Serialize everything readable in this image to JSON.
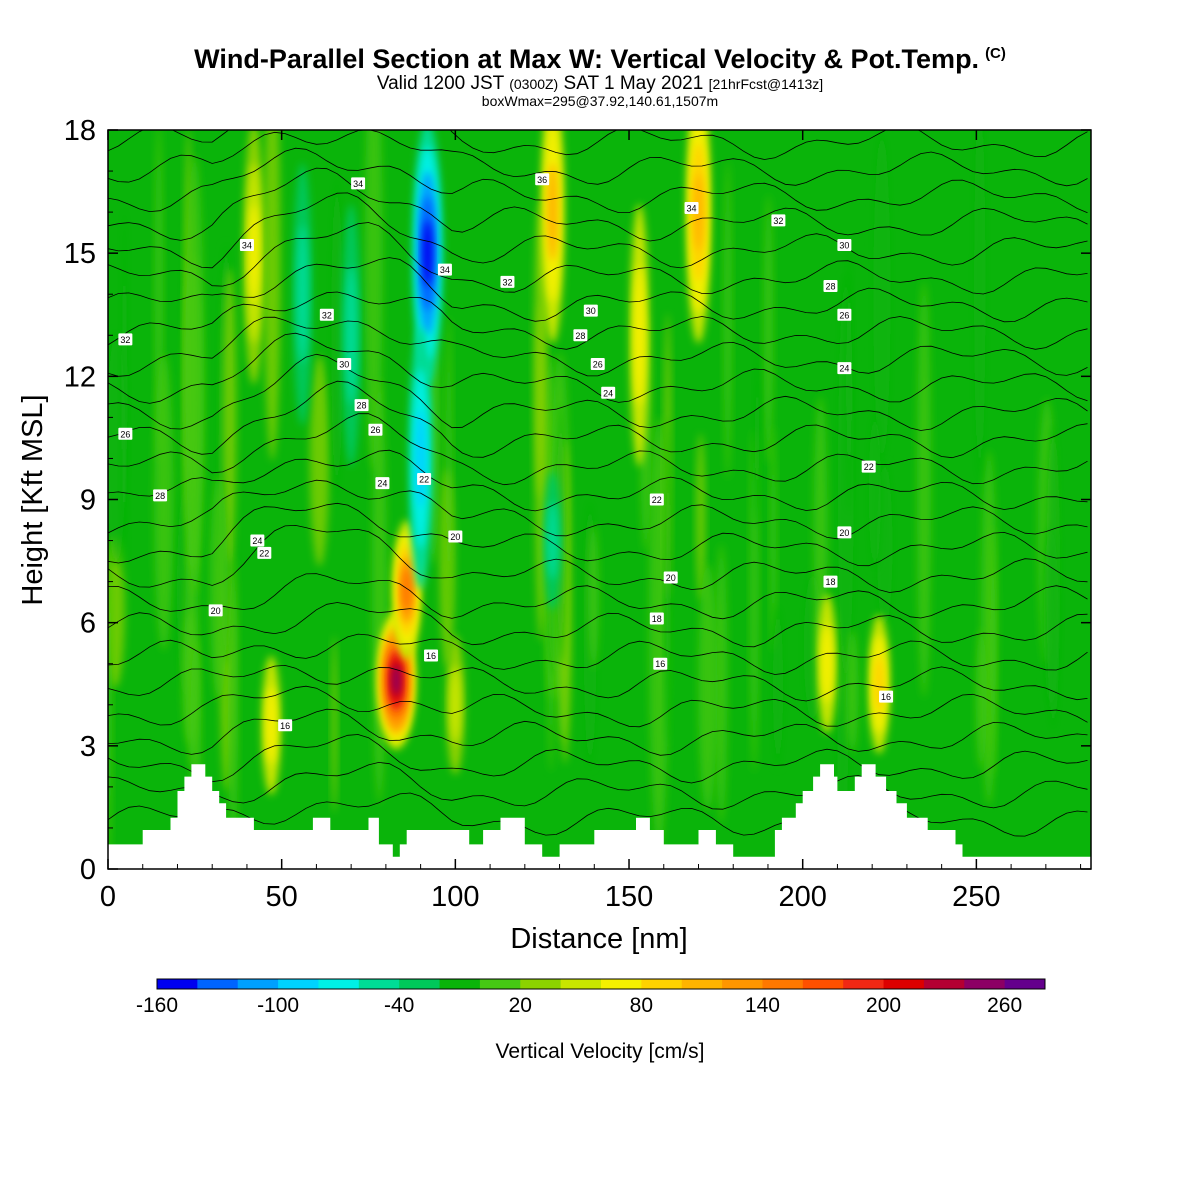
{
  "header": {
    "title": "Wind-Parallel Section at Max W: Vertical Velocity & Pot.Temp.",
    "title_mark": "(C)",
    "valid_prefix": "Valid 1200 JST",
    "valid_utc": "(0300Z)",
    "valid_date": "SAT 1 May 2021",
    "forecast": "[21hrFcst@1413z]",
    "boxwmax": "boxWmax=295@37.92,140.61,1507m"
  },
  "chart_data": {
    "type": "heatmap",
    "xlabel": "Distance [nm]",
    "ylabel": "Height [Kft MSL]",
    "xlim": [
      0,
      283
    ],
    "ylim": [
      0,
      18
    ],
    "x_ticks": [
      0,
      50,
      100,
      150,
      200,
      250
    ],
    "y_ticks": [
      0,
      3,
      6,
      9,
      12,
      15,
      18
    ],
    "colorbar": {
      "label": "Vertical Velocity [cm/s]",
      "tick_labels": [
        "-160",
        "-100",
        "-40",
        "20",
        "80",
        "140",
        "200",
        "260"
      ],
      "tick_values": [
        -160,
        -100,
        -40,
        20,
        80,
        140,
        200,
        260
      ],
      "min": -160,
      "max": 280,
      "step": 20,
      "colors": [
        "#0000f0",
        "#0064ff",
        "#00a0ff",
        "#00d2ff",
        "#00f0e6",
        "#00dc96",
        "#00c85a",
        "#0ab40a",
        "#46c814",
        "#8cd200",
        "#c8e600",
        "#f5f000",
        "#ffd200",
        "#ffb400",
        "#ff9600",
        "#ff7800",
        "#ff5000",
        "#f02814",
        "#dc0000",
        "#b40032",
        "#8c0064",
        "#64008c"
      ]
    },
    "w_features": [
      {
        "x": 83,
        "y": 4.6,
        "w": 240
      },
      {
        "x": 86,
        "y": 6.8,
        "w": 150
      },
      {
        "x": 92,
        "y": 15,
        "w": -160
      },
      {
        "x": 90,
        "y": 10,
        "w": -100
      },
      {
        "x": 128,
        "y": 16,
        "w": 100
      },
      {
        "x": 170,
        "y": 16,
        "w": 110
      },
      {
        "x": 42,
        "y": 15,
        "w": 75
      },
      {
        "x": 56,
        "y": 14,
        "w": -60
      },
      {
        "x": 153,
        "y": 13,
        "w": 60
      },
      {
        "x": 70,
        "y": 13,
        "w": -60
      },
      {
        "x": 128,
        "y": 8,
        "w": -50
      },
      {
        "x": 47,
        "y": 3.5,
        "w": 60
      },
      {
        "x": 222,
        "y": 4.5,
        "w": 80
      },
      {
        "x": 207,
        "y": 5,
        "w": 65
      },
      {
        "x": 100,
        "y": 4,
        "w": 55
      }
    ],
    "terrain_top_kft": [
      [
        0,
        0.6
      ],
      [
        10,
        0.6
      ],
      [
        10,
        0.95
      ],
      [
        18,
        0.95
      ],
      [
        18,
        1.25
      ],
      [
        20,
        1.25
      ],
      [
        20,
        1.9
      ],
      [
        22,
        1.9
      ],
      [
        22,
        2.25
      ],
      [
        24,
        2.25
      ],
      [
        24,
        2.55
      ],
      [
        28,
        2.55
      ],
      [
        28,
        2.25
      ],
      [
        30,
        2.25
      ],
      [
        30,
        1.9
      ],
      [
        32,
        1.9
      ],
      [
        32,
        1.6
      ],
      [
        34,
        1.6
      ],
      [
        34,
        1.25
      ],
      [
        42,
        1.25
      ],
      [
        42,
        0.95
      ],
      [
        59,
        0.95
      ],
      [
        59,
        1.25
      ],
      [
        64,
        1.25
      ],
      [
        64,
        0.95
      ],
      [
        75,
        0.95
      ],
      [
        75,
        1.25
      ],
      [
        78,
        1.25
      ],
      [
        78,
        0.6
      ],
      [
        82,
        0.6
      ],
      [
        82,
        0.3
      ],
      [
        84,
        0.3
      ],
      [
        84,
        0.6
      ],
      [
        86,
        0.6
      ],
      [
        86,
        0.95
      ],
      [
        104,
        0.95
      ],
      [
        104,
        0.6
      ],
      [
        108,
        0.6
      ],
      [
        108,
        0.95
      ],
      [
        113,
        0.95
      ],
      [
        113,
        1.25
      ],
      [
        120,
        1.25
      ],
      [
        120,
        0.6
      ],
      [
        125,
        0.6
      ],
      [
        125,
        0.3
      ],
      [
        130,
        0.3
      ],
      [
        130,
        0.6
      ],
      [
        140,
        0.6
      ],
      [
        140,
        0.95
      ],
      [
        152,
        0.95
      ],
      [
        152,
        1.25
      ],
      [
        156,
        1.25
      ],
      [
        156,
        0.95
      ],
      [
        160,
        0.95
      ],
      [
        160,
        0.6
      ],
      [
        170,
        0.6
      ],
      [
        170,
        0.95
      ],
      [
        175,
        0.95
      ],
      [
        175,
        0.6
      ],
      [
        180,
        0.6
      ],
      [
        180,
        0.3
      ],
      [
        192,
        0.3
      ],
      [
        192,
        0.95
      ],
      [
        194,
        0.95
      ],
      [
        194,
        1.25
      ],
      [
        198,
        1.25
      ],
      [
        198,
        1.6
      ],
      [
        200,
        1.6
      ],
      [
        200,
        1.9
      ],
      [
        203,
        1.9
      ],
      [
        203,
        2.25
      ],
      [
        205,
        2.25
      ],
      [
        205,
        2.55
      ],
      [
        209,
        2.55
      ],
      [
        209,
        2.25
      ],
      [
        210,
        2.25
      ],
      [
        210,
        1.9
      ],
      [
        215,
        1.9
      ],
      [
        215,
        2.25
      ],
      [
        217,
        2.25
      ],
      [
        217,
        2.55
      ],
      [
        221,
        2.55
      ],
      [
        221,
        2.25
      ],
      [
        224,
        2.25
      ],
      [
        224,
        1.9
      ],
      [
        227,
        1.9
      ],
      [
        227,
        1.6
      ],
      [
        230,
        1.6
      ],
      [
        230,
        1.25
      ],
      [
        236,
        1.25
      ],
      [
        236,
        0.95
      ],
      [
        244,
        0.95
      ],
      [
        244,
        0.6
      ],
      [
        246,
        0.6
      ],
      [
        246,
        0.3
      ],
      [
        283,
        0.3
      ]
    ],
    "theta_levels": {
      "count": 26,
      "labels": [
        {
          "text": "34",
          "x": 40,
          "y": 15.2
        },
        {
          "text": "34",
          "x": 72,
          "y": 16.7
        },
        {
          "text": "34",
          "x": 97,
          "y": 14.6
        },
        {
          "text": "36",
          "x": 125,
          "y": 16.8
        },
        {
          "text": "34",
          "x": 168,
          "y": 16.1
        },
        {
          "text": "32",
          "x": 193,
          "y": 15.8
        },
        {
          "text": "32",
          "x": 5,
          "y": 12.9
        },
        {
          "text": "32",
          "x": 63,
          "y": 13.5
        },
        {
          "text": "32",
          "x": 115,
          "y": 14.3
        },
        {
          "text": "30",
          "x": 68,
          "y": 12.3
        },
        {
          "text": "30",
          "x": 139,
          "y": 13.6
        },
        {
          "text": "30",
          "x": 212,
          "y": 15.2
        },
        {
          "text": "28",
          "x": 73,
          "y": 11.3
        },
        {
          "text": "28",
          "x": 136,
          "y": 13.0
        },
        {
          "text": "28",
          "x": 208,
          "y": 14.2
        },
        {
          "text": "26",
          "x": 77,
          "y": 10.7
        },
        {
          "text": "26",
          "x": 141,
          "y": 12.3
        },
        {
          "text": "26",
          "x": 5,
          "y": 10.6
        },
        {
          "text": "26",
          "x": 212,
          "y": 13.5
        },
        {
          "text": "24",
          "x": 79,
          "y": 9.4
        },
        {
          "text": "24",
          "x": 144,
          "y": 11.6
        },
        {
          "text": "24",
          "x": 212,
          "y": 12.2
        },
        {
          "text": "24",
          "x": 43,
          "y": 8.0
        },
        {
          "text": "22",
          "x": 91,
          "y": 9.5
        },
        {
          "text": "22",
          "x": 45,
          "y": 7.7
        },
        {
          "text": "22",
          "x": 158,
          "y": 9.0
        },
        {
          "text": "22",
          "x": 219,
          "y": 9.8
        },
        {
          "text": "20",
          "x": 100,
          "y": 8.1
        },
        {
          "text": "20",
          "x": 31,
          "y": 6.3
        },
        {
          "text": "20",
          "x": 162,
          "y": 7.1
        },
        {
          "text": "20",
          "x": 212,
          "y": 8.2
        },
        {
          "text": "28",
          "x": 15,
          "y": 9.1
        },
        {
          "text": "18",
          "x": 158,
          "y": 6.1
        },
        {
          "text": "18",
          "x": 208,
          "y": 7.0
        },
        {
          "text": "16",
          "x": 93,
          "y": 5.2
        },
        {
          "text": "16",
          "x": 159,
          "y": 5.0
        },
        {
          "text": "16",
          "x": 51,
          "y": 3.5
        },
        {
          "text": "16",
          "x": 224,
          "y": 4.2
        }
      ]
    }
  }
}
